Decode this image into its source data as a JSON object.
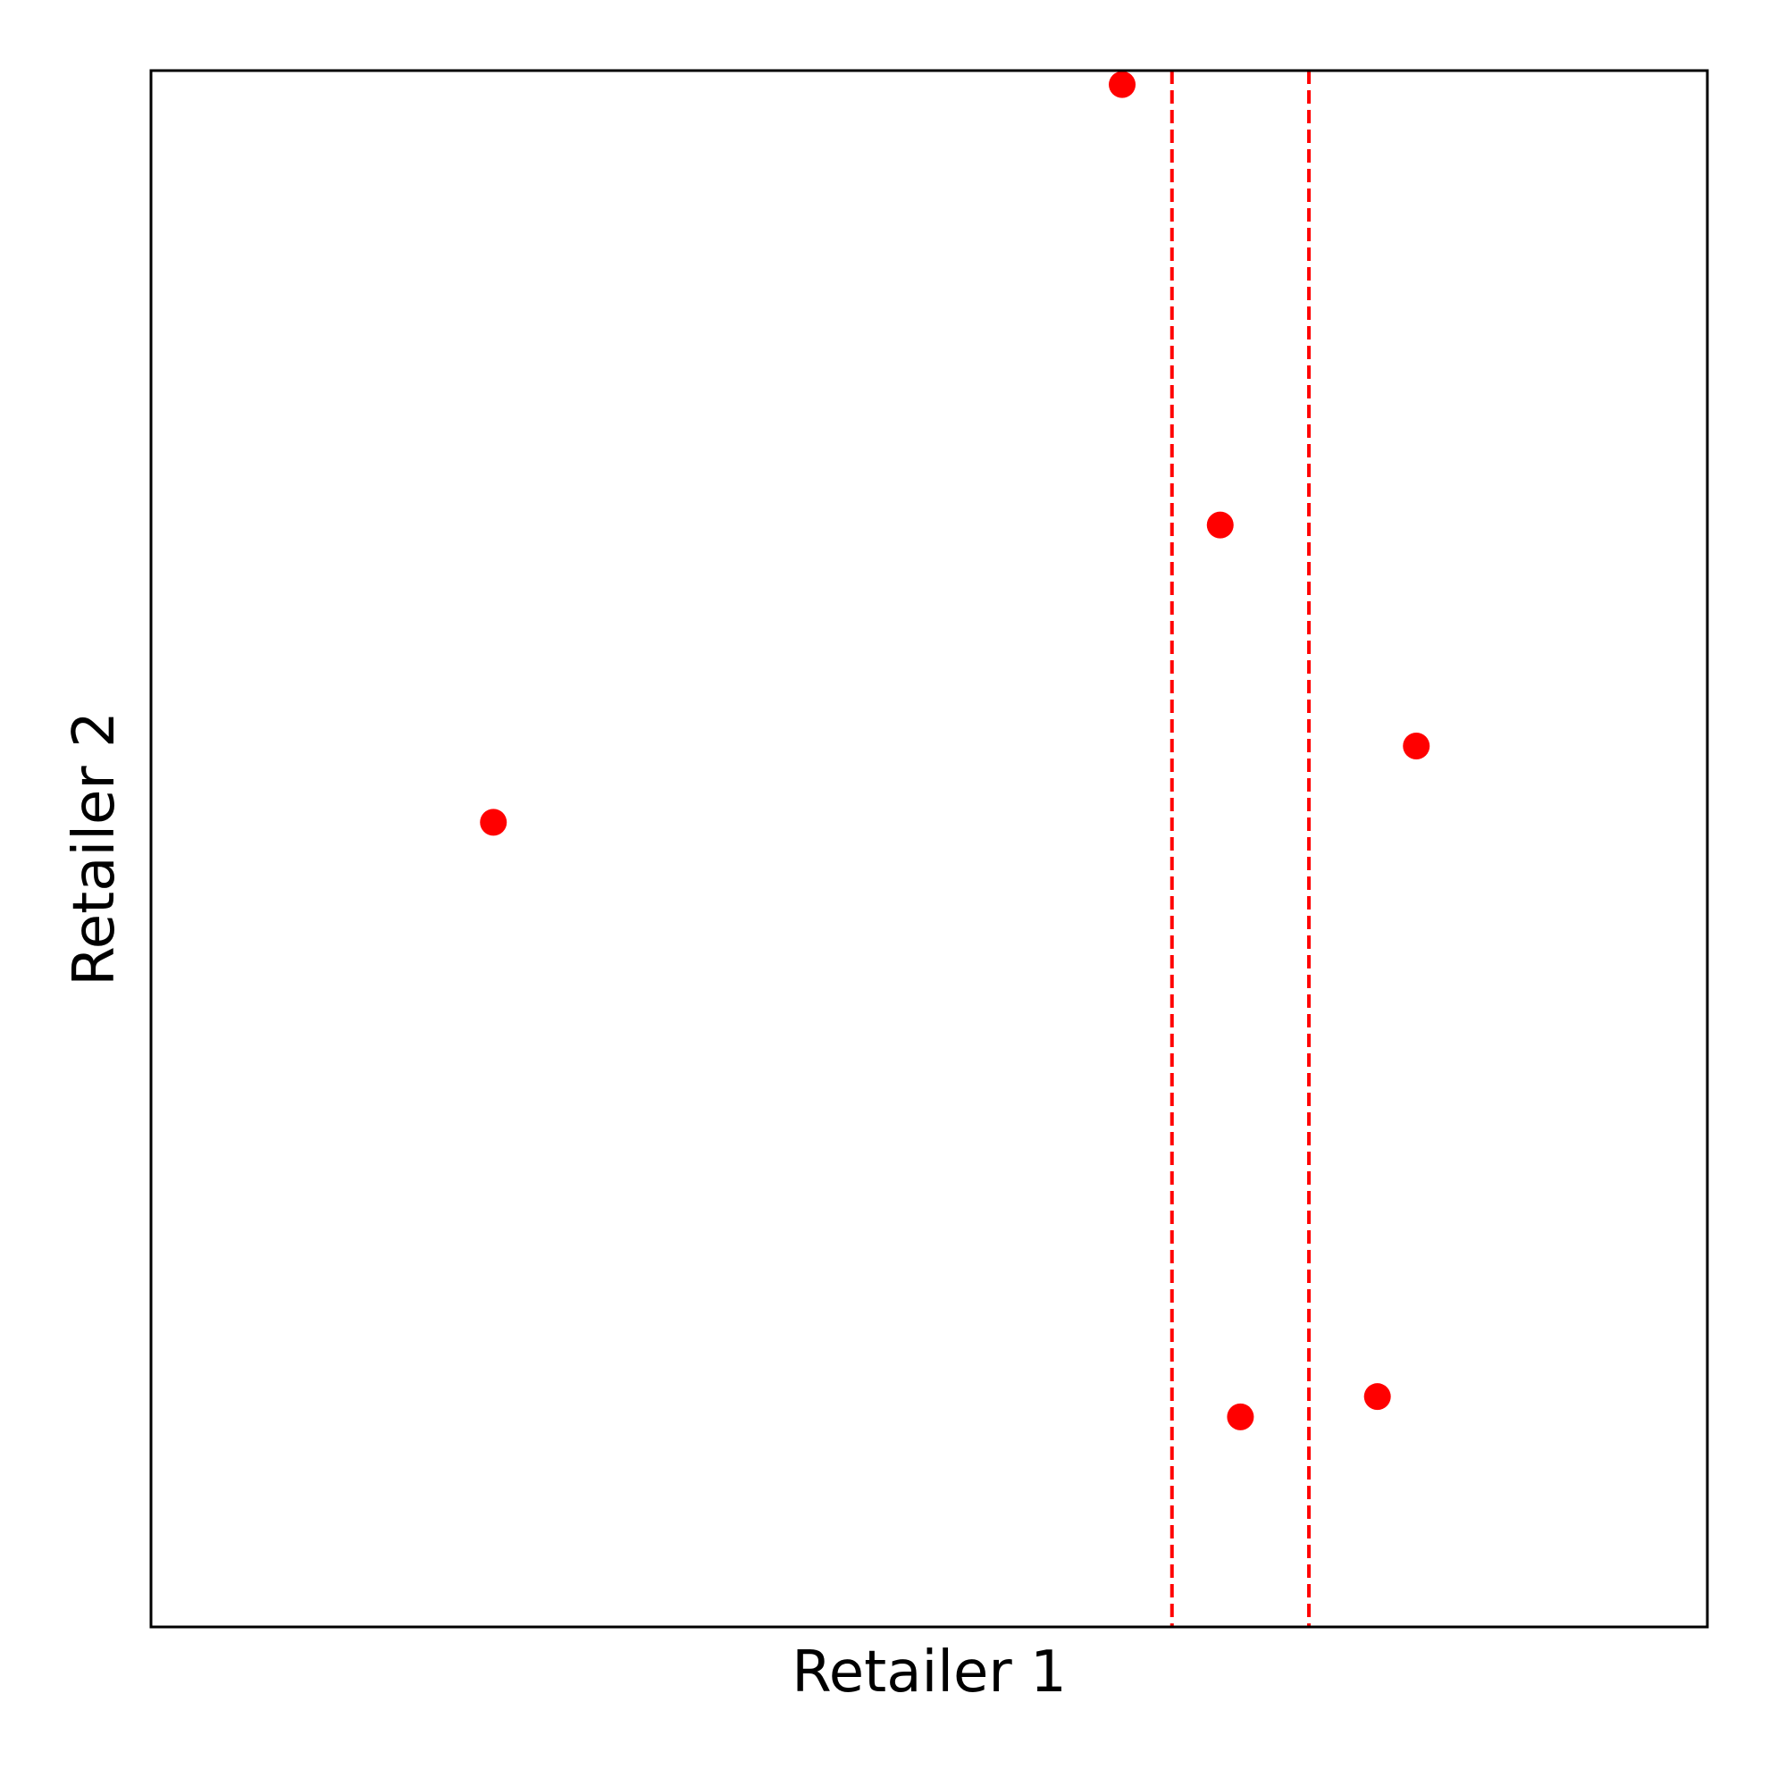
{
  "chart_data": {
    "type": "scatter",
    "title": "",
    "xlabel": "Retailer 1",
    "ylabel": "Retailer 2",
    "xlim": [
      0,
      1
    ],
    "ylim": [
      0,
      1
    ],
    "grid": false,
    "ticks": false,
    "colors": {
      "points": "#ff0000",
      "reference_lines": "#ff0000",
      "frame": "#000000"
    },
    "series": [
      {
        "points": [
          {
            "x": 0.624,
            "y": 0.991
          },
          {
            "x": 0.687,
            "y": 0.708
          },
          {
            "x": 0.813,
            "y": 0.566
          },
          {
            "x": 0.22,
            "y": 0.517
          },
          {
            "x": 0.788,
            "y": 0.148
          },
          {
            "x": 0.7,
            "y": 0.135
          }
        ]
      }
    ],
    "vertical_lines": [
      {
        "x": 0.656,
        "style": "dashed"
      },
      {
        "x": 0.744,
        "style": "dashed"
      }
    ]
  }
}
